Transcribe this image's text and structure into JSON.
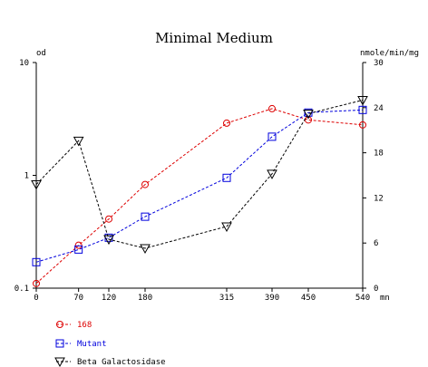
{
  "chart_data": {
    "type": "line",
    "title": "Minimal Medium",
    "x": [
      0,
      70,
      120,
      180,
      315,
      390,
      450,
      540
    ],
    "xticks": [
      "0",
      "70",
      "120",
      "180",
      "315",
      "390",
      "450",
      "540"
    ],
    "xunit": "mn",
    "xlim": [
      0,
      540
    ],
    "left_axis": {
      "label": "od",
      "scale": "log",
      "ylim": [
        0.1,
        10
      ],
      "ticks": [
        "0.1",
        "1",
        "10"
      ]
    },
    "right_axis": {
      "label": "nmole/min/mg",
      "scale": "linear",
      "ylim": [
        0,
        30
      ],
      "ticks": [
        "0",
        "6",
        "12",
        "18",
        "24",
        "30"
      ]
    },
    "series": [
      {
        "name": "168",
        "axis": "left",
        "color": "#dd0000",
        "marker": "circle",
        "x": [
          0,
          70,
          120,
          180,
          315,
          390,
          450,
          540
        ],
        "values": [
          0.11,
          0.24,
          0.41,
          0.83,
          2.9,
          3.9,
          3.1,
          2.8
        ]
      },
      {
        "name": "Mutant",
        "axis": "left",
        "color": "#0000dd",
        "marker": "square",
        "x": [
          0,
          70,
          120,
          180,
          315,
          390,
          450,
          540
        ],
        "values": [
          0.17,
          0.22,
          0.28,
          0.43,
          0.95,
          2.2,
          3.6,
          3.8
        ]
      },
      {
        "name": "Beta Galactosidase",
        "axis": "right",
        "color": "#000000",
        "marker": "triangle-down",
        "x": [
          0,
          70,
          120,
          180,
          315,
          390,
          450,
          540
        ],
        "values": [
          13.8,
          19.6,
          6.5,
          5.3,
          8.2,
          15.2,
          23.2,
          25.0
        ]
      }
    ],
    "grid": false,
    "legend_position": "bottom-left"
  }
}
